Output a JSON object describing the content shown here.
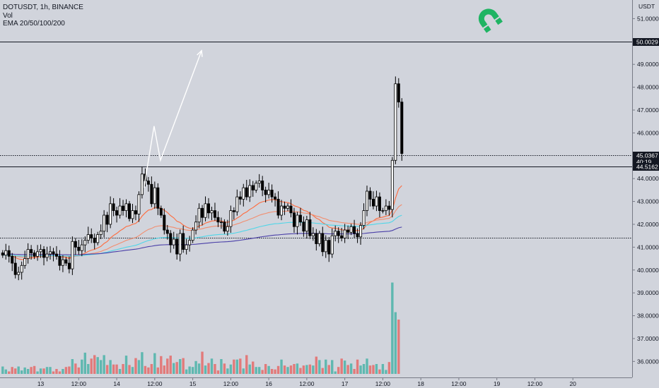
{
  "legend": {
    "symbol": "DOTUSDT, 1h, BINANCE",
    "volume": "Vol",
    "ema": "EMA 20/50/100/200"
  },
  "chart_data": {
    "type": "candlestick",
    "symbol": "DOTUSDT",
    "interval": "1h",
    "exchange": "BINANCE",
    "ylabel": "USDT",
    "ylim": [
      35.3,
      51.6
    ],
    "y_ticks": [
      36,
      37,
      38,
      39,
      40,
      41,
      42,
      43,
      44,
      45,
      46,
      47,
      48,
      49,
      50,
      51
    ],
    "y_tick_labels": [
      "36.0000",
      "37.0000",
      "38.0000",
      "39.0000",
      "40.0000",
      "41.0000",
      "42.0000",
      "43.0000",
      "44.0000",
      "45.0000",
      "46.0000",
      "47.0000",
      "48.0000",
      "49.0000",
      "50.0000",
      "51.0000"
    ],
    "x_ticks": [
      {
        "bar": 12,
        "label": "13"
      },
      {
        "bar": 24,
        "label": "12:00"
      },
      {
        "bar": 36,
        "label": "14"
      },
      {
        "bar": 48,
        "label": "12:00"
      },
      {
        "bar": 60,
        "label": "15"
      },
      {
        "bar": 72,
        "label": "12:00"
      },
      {
        "bar": 84,
        "label": "16"
      },
      {
        "bar": 96,
        "label": "12:00"
      },
      {
        "bar": 108,
        "label": "17"
      },
      {
        "bar": 120,
        "label": "12:00"
      },
      {
        "bar": 132,
        "label": "18"
      },
      {
        "bar": 144,
        "label": "12:00"
      },
      {
        "bar": 156,
        "label": "19"
      },
      {
        "bar": 168,
        "label": "12:00"
      },
      {
        "bar": 180,
        "label": "20"
      }
    ],
    "levels": [
      {
        "value": 50.0029,
        "label": "50.0029",
        "style": "solid"
      },
      {
        "value": 45.0367,
        "label": "45.0367",
        "sublabel": "40:19",
        "style": "dotted"
      },
      {
        "value": 44.5162,
        "label": "44.5162",
        "style": "solid"
      },
      {
        "value": 41.4,
        "label": "",
        "style": "dotted"
      }
    ],
    "closes": [
      40.65,
      40.85,
      40.6,
      40.3,
      39.8,
      39.9,
      40.2,
      40.5,
      40.9,
      40.75,
      40.6,
      40.8,
      40.9,
      40.55,
      40.7,
      40.8,
      40.7,
      40.6,
      40.2,
      40.45,
      40.3,
      40.05,
      41.25,
      41.0,
      40.85,
      41.1,
      41.3,
      41.55,
      41.4,
      41.2,
      41.55,
      41.7,
      42.4,
      42.0,
      42.9,
      42.6,
      42.4,
      42.8,
      42.6,
      42.9,
      42.25,
      42.6,
      42.45,
      43.3,
      44.2,
      43.9,
      43.75,
      42.9,
      43.6,
      42.7,
      42.4,
      41.75,
      41.6,
      41.1,
      41.35,
      40.7,
      41.6,
      40.9,
      41.1,
      41.3,
      41.75,
      42.1,
      42.7,
      42.3,
      42.9,
      42.5,
      42.6,
      42.3,
      42.1,
      42.1,
      41.7,
      41.9,
      42.6,
      42.55,
      43.2,
      43.1,
      43.6,
      43.2,
      43.7,
      43.5,
      43.8,
      43.9,
      43.5,
      43.3,
      43.5,
      43.2,
      43.1,
      42.4,
      42.8,
      42.7,
      42.8,
      42.5,
      41.9,
      42.4,
      42.1,
      41.7,
      42.2,
      41.5,
      41.6,
      41.15,
      41.6,
      40.8,
      41.3,
      40.7,
      41.5,
      41.7,
      41.5,
      41.4,
      41.75,
      41.65,
      41.9,
      41.6,
      41.45,
      41.95,
      42.6,
      43.45,
      43.1,
      42.8,
      43.2,
      42.6,
      42.6,
      42.8,
      42.65,
      44.8,
      48.15,
      47.35,
      45.1
    ],
    "volumes": [
      15,
      9,
      5,
      14,
      11,
      15,
      7,
      13,
      10,
      14,
      16,
      5,
      11,
      11,
      14,
      14,
      5,
      10,
      5,
      10,
      14,
      15,
      30,
      21,
      13,
      29,
      43,
      20,
      31,
      38,
      34,
      28,
      38,
      18,
      28,
      19,
      19,
      10,
      20,
      37,
      18,
      14,
      32,
      28,
      44,
      16,
      13,
      20,
      42,
      13,
      36,
      17,
      31,
      37,
      22,
      24,
      30,
      32,
      9,
      15,
      14,
      26,
      21,
      45,
      17,
      22,
      31,
      20,
      7,
      30,
      21,
      11,
      19,
      29,
      29,
      31,
      11,
      38,
      19,
      25,
      14,
      14,
      8,
      20,
      16,
      10,
      9,
      16,
      29,
      17,
      14,
      17,
      20,
      21,
      12,
      17,
      18,
      19,
      17,
      35,
      28,
      12,
      29,
      18,
      28,
      5,
      14,
      31,
      27,
      18,
      21,
      10,
      29,
      17,
      20,
      31,
      17,
      18,
      20,
      9,
      20,
      8,
      24,
      185,
      125,
      110
    ],
    "ema": [
      {
        "name": "EMA 20",
        "color": "#ff6b3d"
      },
      {
        "name": "EMA 50",
        "color": "#f28d6e"
      },
      {
        "name": "EMA 100",
        "color": "#4fd6e8"
      },
      {
        "name": "EMA 200",
        "color": "#4a3fa8"
      }
    ],
    "annotation_path": [
      [
        44.6,
        43.6
      ],
      [
        47.8,
        46.3
      ],
      [
        49.8,
        44.8
      ],
      [
        62.8,
        49.6
      ]
    ],
    "colors": {
      "up": "#26a69a",
      "down": "#ef5350",
      "candle": "#000000",
      "vol_up": "#5fb8b0",
      "vol_down": "#e27a7a",
      "background": "#d1d4dc",
      "logo": "#1fb463"
    }
  }
}
